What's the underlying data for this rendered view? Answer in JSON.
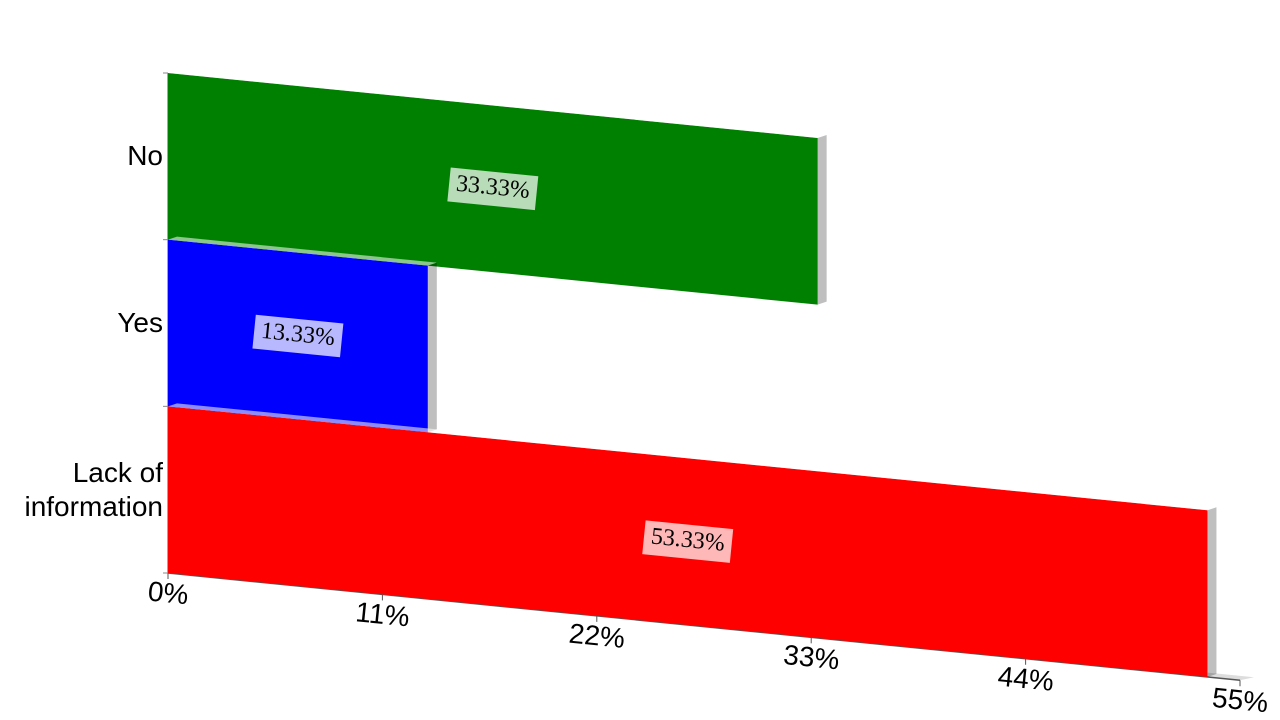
{
  "chart_data": {
    "type": "bar",
    "orientation": "horizontal",
    "categories": [
      "No",
      "Yes",
      "Lack of information"
    ],
    "values": [
      33.33,
      13.33,
      53.33
    ],
    "value_labels": [
      "33.33%",
      "13.33%",
      "53.33%"
    ],
    "colors": [
      "#008000",
      "#0000ff",
      "#ff0000"
    ],
    "xlim": [
      0,
      55
    ],
    "xticks": [
      {
        "value": 0,
        "label": "0%"
      },
      {
        "value": 11,
        "label": "11%"
      },
      {
        "value": 22,
        "label": "22%"
      },
      {
        "value": 33,
        "label": "33%"
      },
      {
        "value": 44,
        "label": "44%"
      },
      {
        "value": 55,
        "label": "55%"
      }
    ]
  }
}
